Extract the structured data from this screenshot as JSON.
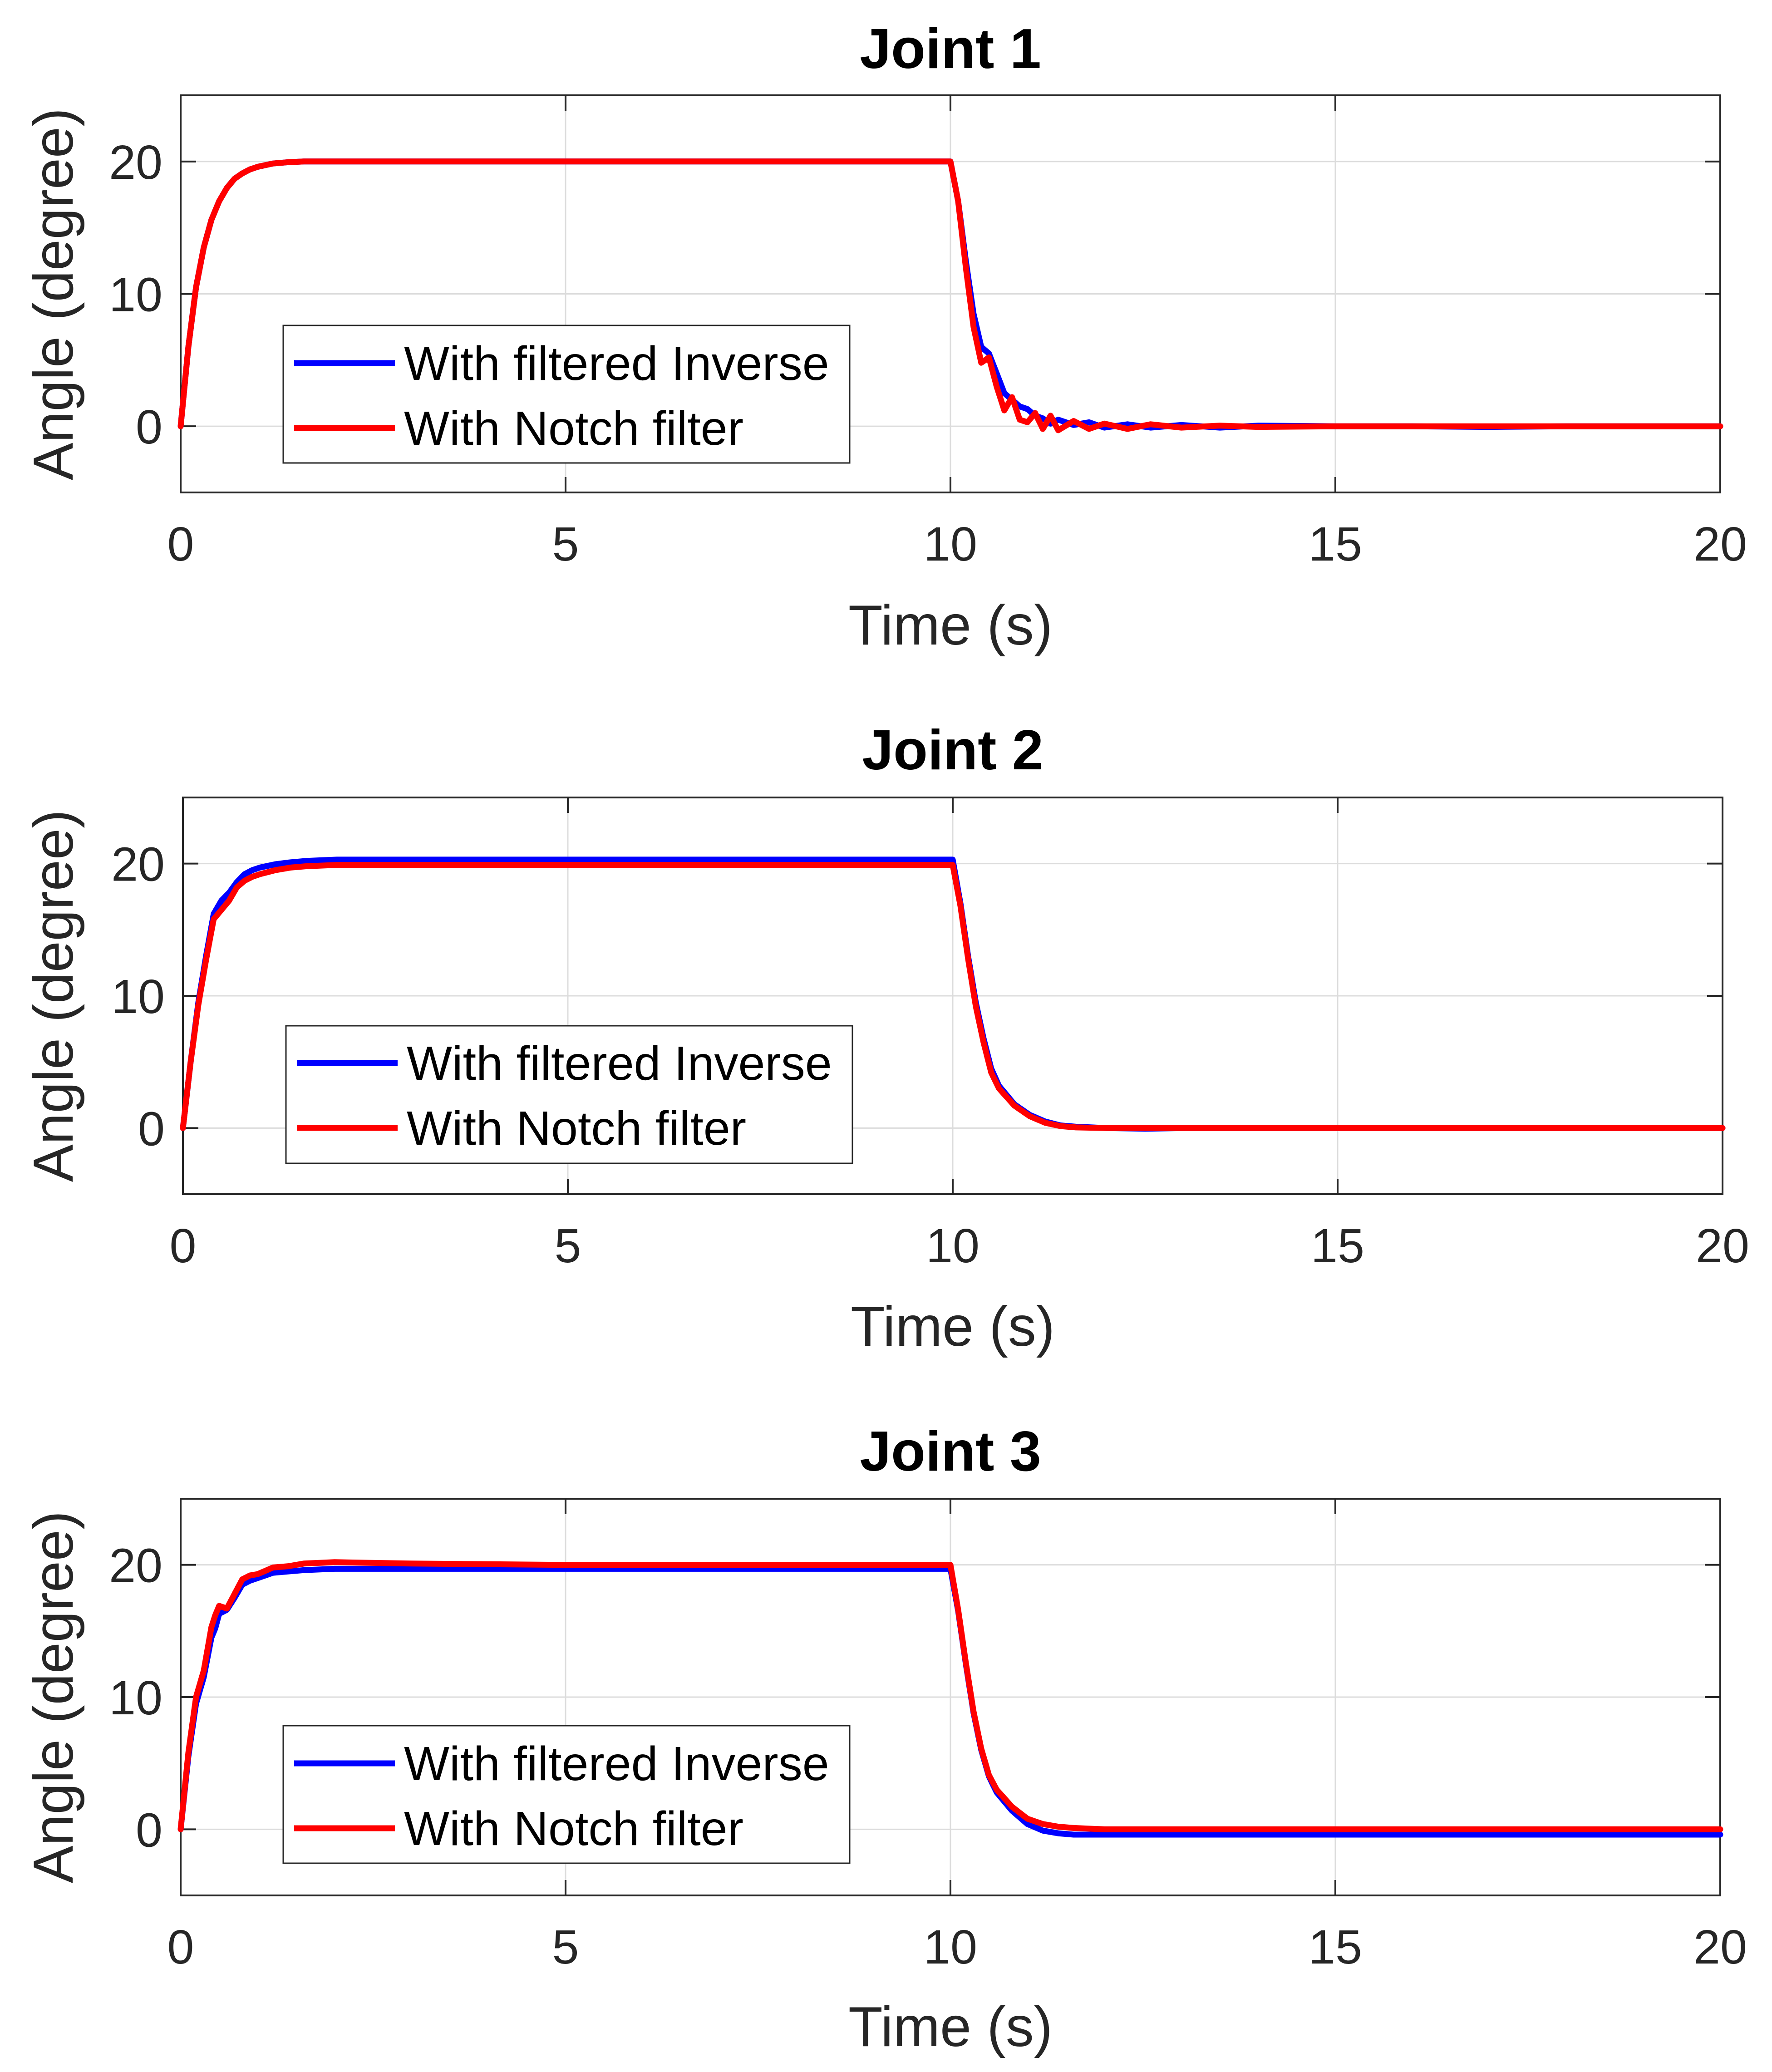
{
  "colors": {
    "series1": "#0000ff",
    "series2": "#ff0000",
    "grid": "#dcdcdc",
    "axes": "#262626"
  },
  "chart_data": [
    {
      "type": "line",
      "title": "Joint 1",
      "xlabel": "Time (s)",
      "ylabel": "Angle (degree)",
      "xlim": [
        0,
        20
      ],
      "ylim": [
        -5,
        25
      ],
      "xticks": [
        0,
        5,
        10,
        15,
        20
      ],
      "yticks": [
        0,
        10,
        20
      ],
      "grid": true,
      "legend": "lower-left",
      "series": [
        {
          "name": "With filtered Inverse",
          "x": [
            0,
            0.1,
            0.2,
            0.3,
            0.4,
            0.5,
            0.6,
            0.7,
            0.8,
            0.9,
            1.0,
            1.2,
            1.4,
            1.6,
            2.0,
            3.0,
            5.0,
            9.9,
            10.0,
            10.1,
            10.2,
            10.3,
            10.4,
            10.5,
            10.6,
            10.7,
            10.8,
            10.9,
            11.0,
            11.1,
            11.2,
            11.3,
            11.4,
            11.6,
            11.8,
            12.0,
            12.3,
            12.6,
            13.0,
            13.5,
            14.0,
            15.0,
            16.0,
            17.0,
            18.0,
            19.0,
            20.0
          ],
          "y": [
            0,
            6,
            10.5,
            13.5,
            15.6,
            17.0,
            18.0,
            18.7,
            19.1,
            19.4,
            19.6,
            19.85,
            19.95,
            20.0,
            20.0,
            20.0,
            20.0,
            20.0,
            20.0,
            17.0,
            12.5,
            8.5,
            6.0,
            5.5,
            4.0,
            2.5,
            2.0,
            1.5,
            1.3,
            0.8,
            0.6,
            0.2,
            0.5,
            0.1,
            0.3,
            -0.1,
            0.15,
            -0.1,
            0.1,
            -0.1,
            0.05,
            0,
            0,
            -0.05,
            0,
            0,
            0
          ]
        },
        {
          "name": "With Notch filter",
          "x": [
            0,
            0.1,
            0.2,
            0.3,
            0.4,
            0.5,
            0.6,
            0.7,
            0.8,
            0.9,
            1.0,
            1.2,
            1.4,
            1.6,
            2.0,
            3.0,
            5.0,
            9.9,
            10.0,
            10.1,
            10.2,
            10.3,
            10.4,
            10.5,
            10.6,
            10.7,
            10.8,
            10.9,
            11.0,
            11.1,
            11.2,
            11.3,
            11.4,
            11.6,
            11.8,
            12.0,
            12.3,
            12.6,
            13.0,
            13.5,
            14.0,
            15.0,
            16.0,
            17.0,
            18.0,
            19.0,
            20.0
          ],
          "y": [
            0,
            6,
            10.5,
            13.5,
            15.6,
            17.0,
            18.0,
            18.7,
            19.1,
            19.4,
            19.6,
            19.85,
            19.95,
            20.0,
            20.0,
            20.0,
            20.0,
            20.0,
            20.0,
            17.0,
            12.0,
            7.5,
            4.8,
            5.2,
            3.0,
            1.2,
            2.2,
            0.5,
            0.3,
            1.0,
            -0.2,
            0.8,
            -0.3,
            0.4,
            -0.2,
            0.2,
            -0.2,
            0.15,
            -0.1,
            0.05,
            -0.05,
            0,
            0,
            0,
            0,
            0,
            0
          ]
        }
      ]
    },
    {
      "type": "line",
      "title": "Joint 2",
      "xlabel": "Time (s)",
      "ylabel": "Angle (degree)",
      "xlim": [
        0,
        20
      ],
      "ylim": [
        -5,
        25
      ],
      "xticks": [
        0,
        5,
        10,
        15,
        20
      ],
      "yticks": [
        0,
        10,
        20
      ],
      "grid": true,
      "legend": "lower-left",
      "series": [
        {
          "name": "With filtered Inverse",
          "x": [
            0,
            0.1,
            0.2,
            0.3,
            0.4,
            0.5,
            0.6,
            0.7,
            0.8,
            0.9,
            1.0,
            1.2,
            1.4,
            1.6,
            2.0,
            3.0,
            5.0,
            9.9,
            10.0,
            10.1,
            10.2,
            10.3,
            10.4,
            10.5,
            10.6,
            10.8,
            11.0,
            11.2,
            11.4,
            11.6,
            12.0,
            12.5,
            13.0,
            15.0,
            20.0
          ],
          "y": [
            0,
            5,
            9.5,
            13,
            16.2,
            17.2,
            17.8,
            18.6,
            19.2,
            19.5,
            19.7,
            19.95,
            20.1,
            20.2,
            20.3,
            20.3,
            20.3,
            20.3,
            20.3,
            17.0,
            13.0,
            9.5,
            6.8,
            4.5,
            3.2,
            1.8,
            1.0,
            0.5,
            0.2,
            0.1,
            0,
            -0.05,
            0,
            0,
            0
          ]
        },
        {
          "name": "With Notch filter",
          "x": [
            0,
            0.1,
            0.2,
            0.3,
            0.4,
            0.5,
            0.6,
            0.7,
            0.8,
            0.9,
            1.0,
            1.2,
            1.4,
            1.6,
            2.0,
            3.0,
            5.0,
            9.9,
            10.0,
            10.1,
            10.2,
            10.3,
            10.4,
            10.5,
            10.6,
            10.8,
            11.0,
            11.2,
            11.4,
            11.6,
            12.0,
            12.5,
            13.0,
            15.0,
            20.0
          ],
          "y": [
            0,
            5,
            9.3,
            12.7,
            15.8,
            16.5,
            17.2,
            18.2,
            18.7,
            19.0,
            19.2,
            19.5,
            19.7,
            19.8,
            19.9,
            19.9,
            19.9,
            19.9,
            19.9,
            16.8,
            12.8,
            9.2,
            6.5,
            4.2,
            3.0,
            1.7,
            0.9,
            0.4,
            0.15,
            0.05,
            0,
            0,
            0,
            0,
            0
          ]
        }
      ]
    },
    {
      "type": "line",
      "title": "Joint 3",
      "xlabel": "Time (s)",
      "ylabel": "Angle (degree)",
      "xlim": [
        0,
        20
      ],
      "ylim": [
        -5,
        25
      ],
      "xticks": [
        0,
        5,
        10,
        15,
        20
      ],
      "yticks": [
        0,
        10,
        20
      ],
      "grid": true,
      "legend": "lower-left",
      "series": [
        {
          "name": "With filtered Inverse",
          "x": [
            0,
            0.1,
            0.2,
            0.3,
            0.4,
            0.45,
            0.5,
            0.6,
            0.7,
            0.8,
            0.9,
            1.0,
            1.2,
            1.4,
            1.6,
            2.0,
            3.0,
            5.0,
            9.9,
            10.0,
            10.1,
            10.2,
            10.3,
            10.4,
            10.5,
            10.6,
            10.8,
            11.0,
            11.2,
            11.4,
            11.6,
            12.0,
            12.5,
            13.0,
            15.0,
            20.0
          ],
          "y": [
            0,
            5.5,
            9.5,
            11.5,
            14.5,
            15.2,
            16.3,
            16.6,
            17.5,
            18.5,
            18.8,
            19.0,
            19.4,
            19.5,
            19.6,
            19.7,
            19.7,
            19.7,
            19.7,
            19.7,
            16.5,
            12.5,
            8.8,
            6.0,
            4.0,
            2.8,
            1.4,
            0.4,
            -0.1,
            -0.3,
            -0.4,
            -0.4,
            -0.4,
            -0.4,
            -0.4,
            -0.4
          ]
        },
        {
          "name": "With Notch filter",
          "x": [
            0,
            0.1,
            0.2,
            0.3,
            0.4,
            0.45,
            0.5,
            0.6,
            0.7,
            0.8,
            0.9,
            1.0,
            1.2,
            1.4,
            1.6,
            2.0,
            3.0,
            5.0,
            9.9,
            10.0,
            10.1,
            10.2,
            10.3,
            10.4,
            10.5,
            10.6,
            10.8,
            11.0,
            11.2,
            11.4,
            11.6,
            12.0,
            12.5,
            13.0,
            15.0,
            20.0
          ],
          "y": [
            0,
            5.8,
            10.0,
            12.0,
            15.3,
            16.2,
            16.9,
            16.7,
            17.8,
            18.9,
            19.2,
            19.3,
            19.8,
            19.9,
            20.1,
            20.2,
            20.1,
            20.0,
            20.0,
            20.0,
            16.6,
            12.6,
            8.9,
            6.1,
            4.1,
            3.0,
            1.7,
            0.8,
            0.4,
            0.2,
            0.1,
            0,
            0,
            0,
            0,
            0
          ]
        }
      ]
    }
  ]
}
